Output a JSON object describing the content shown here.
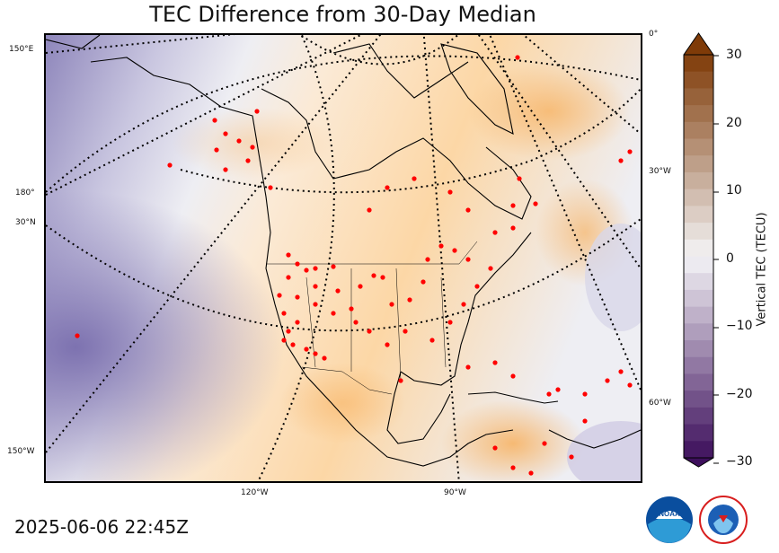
{
  "title": "TEC Difference from 30-Day Median",
  "timestamp": "2025-06-06 22:45Z",
  "edge_labels": {
    "left": [
      "150°E",
      "180°",
      "30°N",
      "150°W"
    ],
    "right": [
      "0°",
      "30°W",
      "60°W"
    ],
    "bottom": [
      "120°W",
      "90°W"
    ]
  },
  "colorbar": {
    "label": "Vertical TEC (TECU)",
    "ticks": [
      "30",
      "20",
      "10",
      "0",
      "−10",
      "−20",
      "−30"
    ],
    "range": [
      -30,
      30
    ],
    "negative_color": "#3d0f5c",
    "neutral_color": "#f4f4f6",
    "positive_color": "#7f3b08"
  },
  "stations": {
    "color": "#ff0000",
    "marker": "red-dot"
  },
  "logos": {
    "left": "noaa-logo",
    "right": "nws-logo"
  }
}
